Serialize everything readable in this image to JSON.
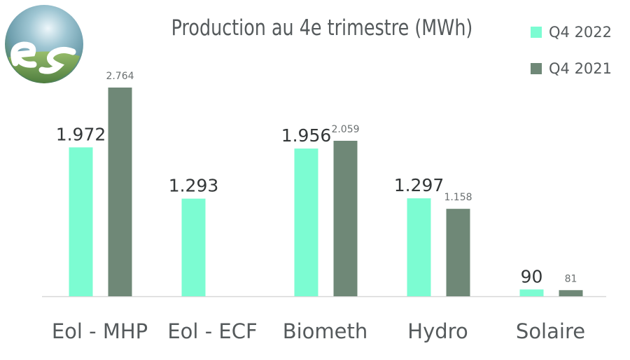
{
  "colors": {
    "q4_2022": "#7cfcd2",
    "q4_2021": "#6f8877",
    "axis": "#d8d8d8",
    "text": "#555a5c"
  },
  "logo": {
    "name": "company-globe-logo",
    "text": "es"
  },
  "chart_data": {
    "type": "bar",
    "title": "Production au 4e trimestre (MWh)",
    "xlabel": "",
    "ylabel": "",
    "categories": [
      "Eol - MHP",
      "Eol - ECF",
      "Biometh",
      "Hydro",
      "Solaire"
    ],
    "series": [
      {
        "name": "Q4 2022",
        "values": [
          1972,
          1293,
          1956,
          1297,
          90
        ],
        "labels": [
          "1.972",
          "1.293",
          "1.956",
          "1.297",
          "90"
        ]
      },
      {
        "name": "Q4 2021",
        "values": [
          2764,
          null,
          2059,
          1158,
          81
        ],
        "labels": [
          "2.764",
          "",
          "2.059",
          "1.158",
          "81"
        ]
      }
    ],
    "ylim": [
      0,
      2764
    ],
    "grid": false,
    "legend_position": "top-right"
  }
}
